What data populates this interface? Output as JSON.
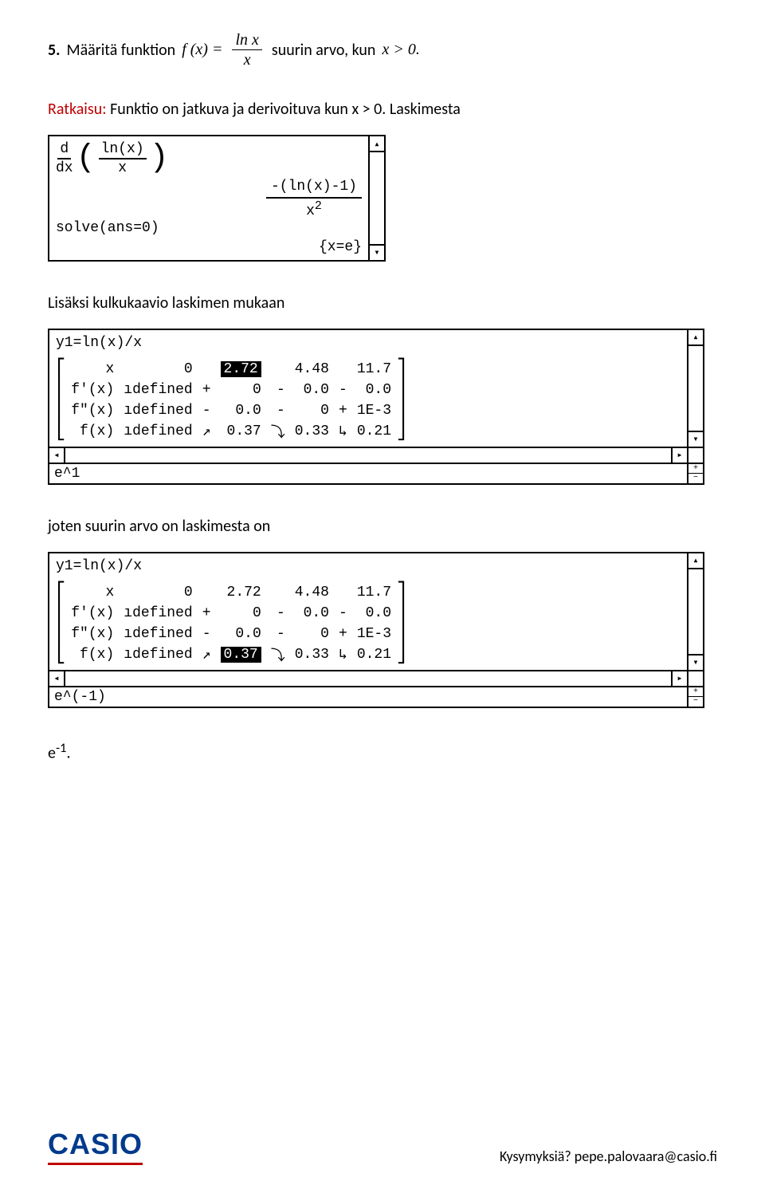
{
  "question": {
    "number": "5.",
    "text_before": "Määritä funktion",
    "fx_lhs": "f (x) =",
    "frac_num": "ln x",
    "frac_den": "x",
    "text_mid": "suurin arvo, kun",
    "cond": "x > 0."
  },
  "solution_label": "Ratkaisu:",
  "solution_text": " Funktio on jatkuva ja derivoituva kun x > 0. Laskimesta",
  "calc1": {
    "deriv_d": "d",
    "deriv_dx": "dx",
    "inner_num": "ln(x)",
    "inner_den": "x",
    "result_num": "-(ln(x)-1)",
    "result_den_base": "x",
    "result_den_exp": "2",
    "solve_line": "solve(ans=0)",
    "solve_result": "{x=e}"
  },
  "para2": "Lisäksi kulkukaavio laskimen mukaan",
  "calc2": {
    "header": "y1=ln(x)/x",
    "input": "e^1",
    "highlight": "2.72",
    "rows": [
      {
        "label": "x",
        "c0": "0",
        "s0": " ",
        "c1": "2.72",
        "s1": " ",
        "c2": "4.48",
        "s2": " ",
        "c3": "11.7"
      },
      {
        "label": "f'(x)",
        "c0": "ıdefined",
        "s0": "+",
        "c1": "0",
        "s1": "-",
        "c2": "0.0",
        "s2": "-",
        "c3": "0.0"
      },
      {
        "label": "f\"(x)",
        "c0": "ıdefined",
        "s0": "-",
        "c1": "0.0",
        "s1": "-",
        "c2": "0",
        "s2": "+",
        "c3": "1E-3"
      },
      {
        "label": "f(x)",
        "c0": "ıdefined",
        "s0": "↗",
        "c1": "0.37",
        "s1": "⤵",
        "c2": "0.33",
        "s2": "↳",
        "c3": "0.21"
      }
    ]
  },
  "para3": "joten suurin arvo on laskimesta on",
  "calc3": {
    "header": "y1=ln(x)/x",
    "input": "e^(-1)",
    "highlight": "0.37",
    "rows": [
      {
        "label": "x",
        "c0": "0",
        "s0": " ",
        "c1": "2.72",
        "s1": " ",
        "c2": "4.48",
        "s2": " ",
        "c3": "11.7"
      },
      {
        "label": "f'(x)",
        "c0": "ıdefined",
        "s0": "+",
        "c1": "0",
        "s1": "-",
        "c2": "0.0",
        "s2": "-",
        "c3": "0.0"
      },
      {
        "label": "f\"(x)",
        "c0": "ıdefined",
        "s0": "-",
        "c1": "0.0",
        "s1": "-",
        "c2": "0",
        "s2": "+",
        "c3": "1E-3"
      },
      {
        "label": "f(x)",
        "c0": "ıdefined",
        "s0": "↗",
        "c1": "0.37",
        "s1": "⤵",
        "c2": "0.33",
        "s2": "↳",
        "c3": "0.21"
      }
    ]
  },
  "answer_base": "e",
  "answer_exp": "-1",
  "answer_dot": ".",
  "footer": {
    "logo": "CASIO",
    "text": "Kysymyksiä? pepe.palovaara@casio.fi"
  }
}
